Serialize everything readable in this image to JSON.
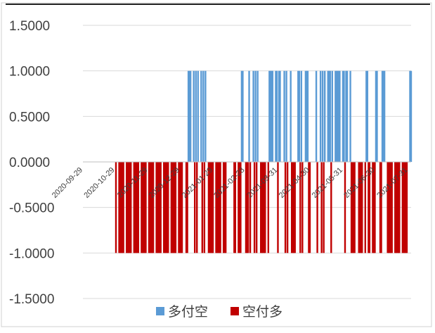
{
  "chart_data": {
    "type": "bar",
    "title": "",
    "xlabel": "",
    "ylabel": "",
    "ylim": [
      -1.5,
      1.5
    ],
    "y_ticks": [
      {
        "value": 1.5,
        "label": "1.5000"
      },
      {
        "value": 1.0,
        "label": "1.0000"
      },
      {
        "value": 0.5,
        "label": "0.5000"
      },
      {
        "value": 0.0,
        "label": "0.0000"
      },
      {
        "value": -0.5,
        "label": "-0.5000"
      },
      {
        "value": -1.0,
        "label": "-1.0000"
      },
      {
        "value": -1.5,
        "label": "-1.5000"
      }
    ],
    "x_start": "2020-09-29",
    "x_end": "2021-08-03",
    "x_tick_labels": [
      "2020-09-29",
      "2020-10-29",
      "2020-11-29",
      "2020-12-29",
      "2021-01-29",
      "2021-02-28",
      "2021-03-31",
      "2021-04-30",
      "2021-05-31",
      "2021-06-30",
      "2021-07-31"
    ],
    "grid": true,
    "legend": {
      "position": "bottom"
    },
    "series": [
      {
        "name": "多付空",
        "color": "#5b9bd5",
        "value": 1,
        "dates": [
          "2021-01-06",
          "2021-01-07",
          "2021-01-08",
          "2021-01-11",
          "2021-01-13",
          "2021-01-15",
          "2021-01-18",
          "2021-01-20",
          "2021-01-22",
          "2021-02-25",
          "2021-02-26",
          "2021-03-04",
          "2021-03-08",
          "2021-03-10",
          "2021-03-12",
          "2021-03-23",
          "2021-03-24",
          "2021-03-25",
          "2021-03-26",
          "2021-03-29",
          "2021-03-30",
          "2021-04-01",
          "2021-04-02",
          "2021-04-06",
          "2021-04-08",
          "2021-04-12",
          "2021-04-19",
          "2021-04-20",
          "2021-04-22",
          "2021-04-26",
          "2021-04-27",
          "2021-04-28",
          "2021-05-06",
          "2021-05-10",
          "2021-05-12",
          "2021-05-14",
          "2021-05-17",
          "2021-05-18",
          "2021-05-19",
          "2021-05-21",
          "2021-05-24",
          "2021-05-25",
          "2021-05-26",
          "2021-05-27",
          "2021-05-28",
          "2021-05-31",
          "2021-06-01",
          "2021-06-03",
          "2021-06-04",
          "2021-06-07",
          "2021-06-22",
          "2021-06-23",
          "2021-07-01",
          "2021-07-02",
          "2021-07-07",
          "2021-07-08",
          "2021-07-09",
          "2021-08-02",
          "2021-08-03"
        ]
      },
      {
        "name": "空付多",
        "color": "#c00000",
        "value": -1,
        "dates": [
          "2020-10-30",
          "2020-11-02",
          "2020-11-03",
          "2020-11-04",
          "2020-11-05",
          "2020-11-06",
          "2020-11-09",
          "2020-11-10",
          "2020-11-11",
          "2020-11-12",
          "2020-11-13",
          "2020-11-16",
          "2020-11-17",
          "2020-11-18",
          "2020-11-19",
          "2020-11-20",
          "2020-11-23",
          "2020-11-24",
          "2020-11-25",
          "2020-11-26",
          "2020-11-27",
          "2020-11-30",
          "2020-12-01",
          "2020-12-02",
          "2020-12-03",
          "2020-12-04",
          "2020-12-07",
          "2020-12-08",
          "2020-12-09",
          "2020-12-10",
          "2020-12-11",
          "2020-12-14",
          "2020-12-15",
          "2020-12-16",
          "2020-12-17",
          "2020-12-18",
          "2020-12-21",
          "2020-12-22",
          "2020-12-23",
          "2020-12-24",
          "2020-12-25",
          "2020-12-28",
          "2020-12-29",
          "2020-12-30",
          "2020-12-31",
          "2021-01-04",
          "2021-01-05",
          "2021-01-12",
          "2021-01-14",
          "2021-01-19",
          "2021-01-21",
          "2021-01-25",
          "2021-01-26",
          "2021-01-27",
          "2021-01-28",
          "2021-01-29",
          "2021-02-01",
          "2021-02-02",
          "2021-02-03",
          "2021-02-04",
          "2021-02-05",
          "2021-02-08",
          "2021-02-09",
          "2021-02-10",
          "2021-02-18",
          "2021-02-19",
          "2021-02-22",
          "2021-02-23",
          "2021-02-24",
          "2021-03-01",
          "2021-03-02",
          "2021-03-03",
          "2021-03-05",
          "2021-03-09",
          "2021-03-11",
          "2021-03-15",
          "2021-03-16",
          "2021-03-17",
          "2021-03-18",
          "2021-03-19",
          "2021-03-22",
          "2021-03-31",
          "2021-04-07",
          "2021-04-09",
          "2021-04-13",
          "2021-04-14",
          "2021-04-15",
          "2021-04-16",
          "2021-04-21",
          "2021-04-23",
          "2021-04-29",
          "2021-04-30",
          "2021-05-07",
          "2021-05-11",
          "2021-05-13",
          "2021-05-20",
          "2021-06-02",
          "2021-06-08",
          "2021-06-09",
          "2021-06-10",
          "2021-06-11",
          "2021-06-15",
          "2021-06-16",
          "2021-06-17",
          "2021-06-18",
          "2021-06-21",
          "2021-06-24",
          "2021-06-25",
          "2021-06-28",
          "2021-06-29",
          "2021-06-30",
          "2021-07-05",
          "2021-07-06",
          "2021-07-12",
          "2021-07-13",
          "2021-07-14",
          "2021-07-15",
          "2021-07-16",
          "2021-07-19",
          "2021-07-20",
          "2021-07-21",
          "2021-07-22",
          "2021-07-23",
          "2021-07-26",
          "2021-07-27",
          "2021-07-28",
          "2021-07-29",
          "2021-07-30"
        ]
      }
    ]
  }
}
